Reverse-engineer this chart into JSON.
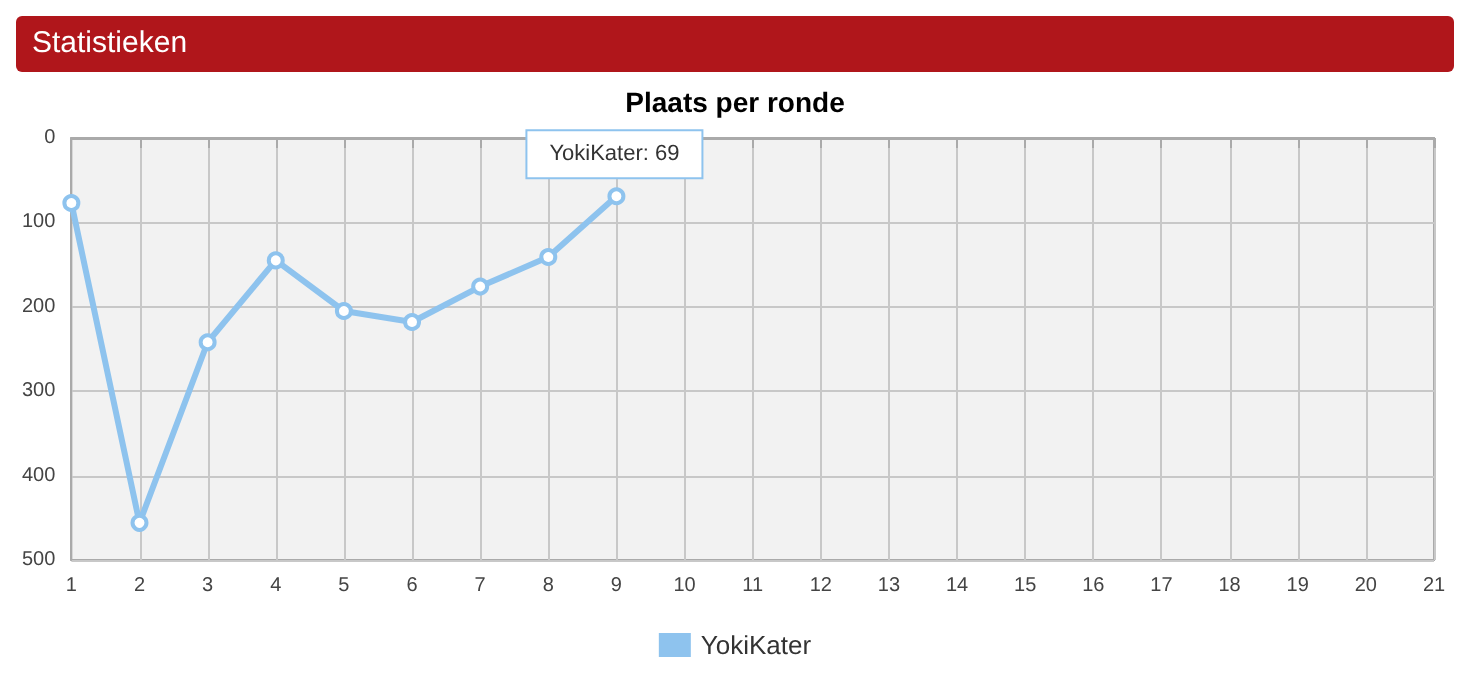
{
  "chart_data": {
    "type": "line",
    "title": "Plaats per ronde",
    "x": [
      1,
      2,
      3,
      4,
      5,
      6,
      7,
      8,
      9
    ],
    "series": [
      {
        "name": "YokiKater",
        "color": "#8ec3ee",
        "values": [
          77,
          456,
          242,
          145,
          205,
          218,
          176,
          141,
          69
        ]
      }
    ],
    "xlim": [
      1,
      21
    ],
    "xticks": [
      1,
      2,
      3,
      4,
      5,
      6,
      7,
      8,
      9,
      10,
      11,
      12,
      13,
      14,
      15,
      16,
      17,
      18,
      19,
      20,
      21
    ],
    "ylim": [
      500,
      0
    ],
    "yticks": [
      0,
      100,
      200,
      300,
      400,
      500
    ],
    "grid": true,
    "legend": "bottom",
    "marker": "circle",
    "line_style": "solid",
    "annotations": [
      "Statistieken",
      {
        "text": "YokiKater: 69",
        "x": 9,
        "y": 69
      }
    ]
  }
}
